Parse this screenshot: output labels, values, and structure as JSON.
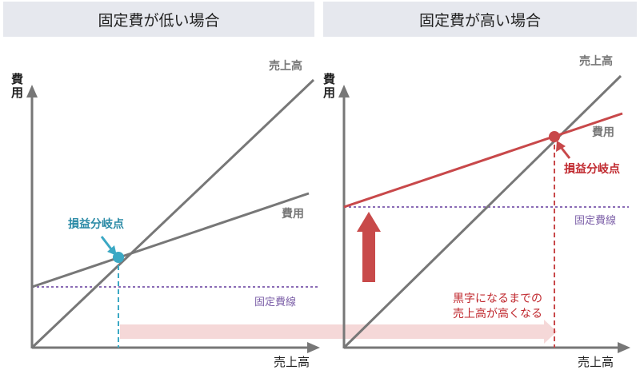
{
  "left": {
    "title": "固定費が低い場合",
    "y_axis": [
      "費",
      "用"
    ],
    "x_axis": "売上高",
    "sales_label": "売上高",
    "cost_label": "費用",
    "fixed_cost_label": "固定費線",
    "bep_label": "損益分岐点"
  },
  "right": {
    "title": "固定費が高い場合",
    "y_axis": [
      "費",
      "用"
    ],
    "x_axis": "売上高",
    "sales_label": "売上高",
    "cost_label": "費用",
    "fixed_cost_label": "固定費線",
    "bep_label": "損益分岐点",
    "note_lines": [
      "黒字になるまでの",
      "売上高が高くなる"
    ]
  },
  "colors": {
    "header_bg": "#e6e8ee",
    "axis": "#777777",
    "sales_line": "#777777",
    "cost_line_left": "#777777",
    "cost_line_right": "#c8484a",
    "fixed_cost": "#8a6bb5",
    "bep_left": "#3ba8c4",
    "bep_right": "#c8484a",
    "up_arrow": "#c84a4a",
    "shift_arrow": "#f5d8d8"
  }
}
